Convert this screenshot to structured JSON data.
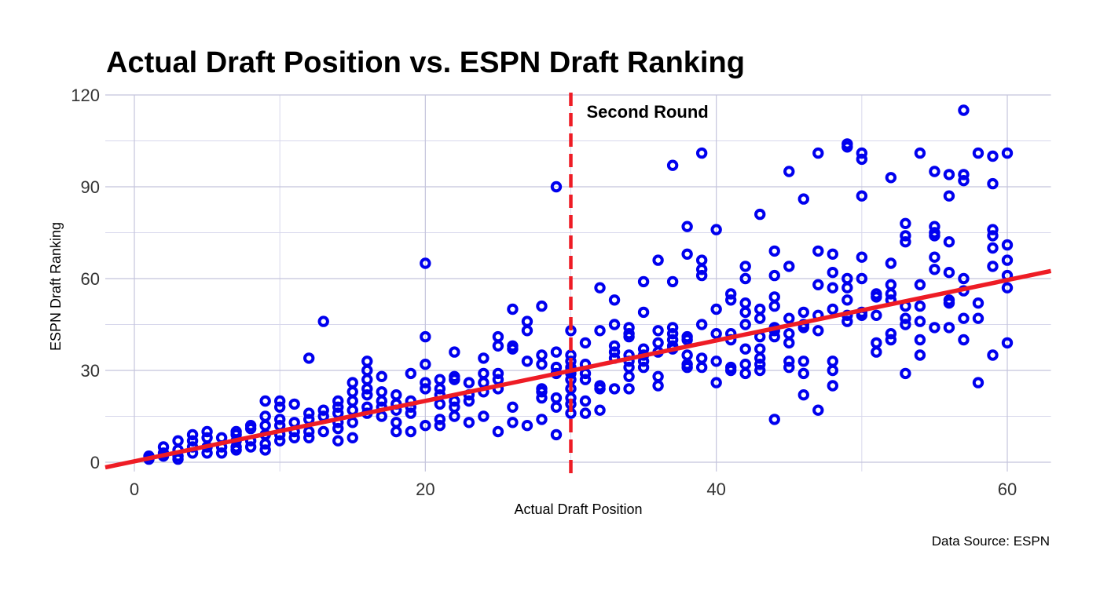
{
  "chart_data": {
    "type": "scatter",
    "title": "Actual Draft Position vs. ESPN Draft Ranking",
    "xlabel": "Actual Draft Position",
    "ylabel": "ESPN Draft Ranking",
    "caption": "Data Source: ESPN",
    "xlim": [
      -2,
      63
    ],
    "ylim": [
      -3,
      120
    ],
    "x_ticks": [
      0,
      20,
      40,
      60
    ],
    "y_ticks": [
      0,
      30,
      60,
      90,
      120
    ],
    "grid": true,
    "marker_color": "#0000ee",
    "trend_color": "#ee1c25",
    "trend_line": {
      "intercept": 0.3,
      "slope": 0.987
    },
    "vline": {
      "x": 30,
      "label": "Second Round",
      "color": "#ee1c25",
      "style": "dashed"
    },
    "points": [
      [
        1,
        1
      ],
      [
        1,
        2
      ],
      [
        2,
        2
      ],
      [
        2,
        3
      ],
      [
        2,
        5
      ],
      [
        3,
        1
      ],
      [
        3,
        2
      ],
      [
        3,
        4
      ],
      [
        3,
        7
      ],
      [
        4,
        3
      ],
      [
        4,
        5
      ],
      [
        4,
        7
      ],
      [
        4,
        9
      ],
      [
        5,
        3
      ],
      [
        5,
        5
      ],
      [
        5,
        8
      ],
      [
        5,
        10
      ],
      [
        6,
        3
      ],
      [
        6,
        5
      ],
      [
        6,
        8
      ],
      [
        7,
        4
      ],
      [
        7,
        5
      ],
      [
        7,
        7
      ],
      [
        7,
        9
      ],
      [
        7,
        10
      ],
      [
        8,
        5
      ],
      [
        8,
        7
      ],
      [
        8,
        11
      ],
      [
        8,
        12
      ],
      [
        9,
        4
      ],
      [
        9,
        6
      ],
      [
        9,
        9
      ],
      [
        9,
        12
      ],
      [
        9,
        15
      ],
      [
        9,
        20
      ],
      [
        10,
        7
      ],
      [
        10,
        9
      ],
      [
        10,
        12
      ],
      [
        10,
        14
      ],
      [
        10,
        18
      ],
      [
        10,
        20
      ],
      [
        11,
        8
      ],
      [
        11,
        10
      ],
      [
        11,
        13
      ],
      [
        11,
        19
      ],
      [
        12,
        8
      ],
      [
        12,
        10
      ],
      [
        12,
        14
      ],
      [
        12,
        16
      ],
      [
        12,
        34
      ],
      [
        13,
        10
      ],
      [
        13,
        15
      ],
      [
        13,
        17
      ],
      [
        13,
        46
      ],
      [
        14,
        7
      ],
      [
        14,
        11
      ],
      [
        14,
        13
      ],
      [
        14,
        16
      ],
      [
        14,
        18
      ],
      [
        14,
        20
      ],
      [
        15,
        8
      ],
      [
        15,
        13
      ],
      [
        15,
        17
      ],
      [
        15,
        20
      ],
      [
        15,
        23
      ],
      [
        15,
        26
      ],
      [
        16,
        16
      ],
      [
        16,
        18
      ],
      [
        16,
        22
      ],
      [
        16,
        24
      ],
      [
        16,
        27
      ],
      [
        16,
        30
      ],
      [
        16,
        33
      ],
      [
        17,
        15
      ],
      [
        17,
        18
      ],
      [
        17,
        20
      ],
      [
        17,
        23
      ],
      [
        17,
        28
      ],
      [
        18,
        10
      ],
      [
        18,
        13
      ],
      [
        18,
        17
      ],
      [
        18,
        19
      ],
      [
        18,
        22
      ],
      [
        19,
        10
      ],
      [
        19,
        16
      ],
      [
        19,
        18
      ],
      [
        19,
        20
      ],
      [
        19,
        29
      ],
      [
        20,
        12
      ],
      [
        20,
        24
      ],
      [
        20,
        26
      ],
      [
        20,
        32
      ],
      [
        20,
        41
      ],
      [
        20,
        65
      ],
      [
        21,
        12
      ],
      [
        21,
        14
      ],
      [
        21,
        19
      ],
      [
        21,
        22
      ],
      [
        21,
        24
      ],
      [
        21,
        27
      ],
      [
        22,
        15
      ],
      [
        22,
        18
      ],
      [
        22,
        20
      ],
      [
        22,
        27
      ],
      [
        22,
        28
      ],
      [
        22,
        36
      ],
      [
        23,
        13
      ],
      [
        23,
        20
      ],
      [
        23,
        22
      ],
      [
        23,
        26
      ],
      [
        24,
        15
      ],
      [
        24,
        23
      ],
      [
        24,
        26
      ],
      [
        24,
        29
      ],
      [
        24,
        34
      ],
      [
        25,
        10
      ],
      [
        25,
        24
      ],
      [
        25,
        27
      ],
      [
        25,
        29
      ],
      [
        25,
        38
      ],
      [
        25,
        41
      ],
      [
        26,
        13
      ],
      [
        26,
        18
      ],
      [
        26,
        37
      ],
      [
        26,
        38
      ],
      [
        26,
        50
      ],
      [
        27,
        12
      ],
      [
        27,
        33
      ],
      [
        27,
        43
      ],
      [
        27,
        46
      ],
      [
        28,
        14
      ],
      [
        28,
        21
      ],
      [
        28,
        23
      ],
      [
        28,
        24
      ],
      [
        28,
        32
      ],
      [
        28,
        35
      ],
      [
        28,
        51
      ],
      [
        29,
        9
      ],
      [
        29,
        18
      ],
      [
        29,
        21
      ],
      [
        29,
        29
      ],
      [
        29,
        31
      ],
      [
        29,
        36
      ],
      [
        29,
        90
      ],
      [
        30,
        16
      ],
      [
        30,
        19
      ],
      [
        30,
        21
      ],
      [
        30,
        24
      ],
      [
        30,
        27
      ],
      [
        30,
        29
      ],
      [
        30,
        30
      ],
      [
        30,
        31
      ],
      [
        30,
        33
      ],
      [
        30,
        35
      ],
      [
        30,
        43
      ],
      [
        31,
        16
      ],
      [
        31,
        20
      ],
      [
        31,
        27
      ],
      [
        31,
        29
      ],
      [
        31,
        32
      ],
      [
        31,
        39
      ],
      [
        32,
        17
      ],
      [
        32,
        24
      ],
      [
        32,
        25
      ],
      [
        32,
        43
      ],
      [
        32,
        57
      ],
      [
        33,
        24
      ],
      [
        33,
        34
      ],
      [
        33,
        36
      ],
      [
        33,
        38
      ],
      [
        33,
        45
      ],
      [
        33,
        53
      ],
      [
        34,
        24
      ],
      [
        34,
        28
      ],
      [
        34,
        31
      ],
      [
        34,
        33
      ],
      [
        34,
        35
      ],
      [
        34,
        41
      ],
      [
        34,
        42
      ],
      [
        34,
        44
      ],
      [
        35,
        31
      ],
      [
        35,
        33
      ],
      [
        35,
        35
      ],
      [
        35,
        37
      ],
      [
        35,
        49
      ],
      [
        35,
        59
      ],
      [
        36,
        25
      ],
      [
        36,
        28
      ],
      [
        36,
        36
      ],
      [
        36,
        39
      ],
      [
        36,
        43
      ],
      [
        36,
        66
      ],
      [
        37,
        37
      ],
      [
        37,
        38
      ],
      [
        37,
        40
      ],
      [
        37,
        42
      ],
      [
        37,
        44
      ],
      [
        37,
        59
      ],
      [
        37,
        97
      ],
      [
        38,
        31
      ],
      [
        38,
        32
      ],
      [
        38,
        35
      ],
      [
        38,
        40
      ],
      [
        38,
        41
      ],
      [
        38,
        68
      ],
      [
        38,
        77
      ],
      [
        39,
        31
      ],
      [
        39,
        34
      ],
      [
        39,
        45
      ],
      [
        39,
        61
      ],
      [
        39,
        63
      ],
      [
        39,
        66
      ],
      [
        39,
        101
      ],
      [
        40,
        26
      ],
      [
        40,
        33
      ],
      [
        40,
        42
      ],
      [
        40,
        50
      ],
      [
        40,
        76
      ],
      [
        41,
        30
      ],
      [
        41,
        31
      ],
      [
        41,
        40
      ],
      [
        41,
        42
      ],
      [
        41,
        53
      ],
      [
        41,
        55
      ],
      [
        42,
        29
      ],
      [
        42,
        32
      ],
      [
        42,
        37
      ],
      [
        42,
        45
      ],
      [
        42,
        49
      ],
      [
        42,
        52
      ],
      [
        42,
        60
      ],
      [
        42,
        64
      ],
      [
        43,
        30
      ],
      [
        43,
        32
      ],
      [
        43,
        34
      ],
      [
        43,
        37
      ],
      [
        43,
        41
      ],
      [
        43,
        47
      ],
      [
        43,
        50
      ],
      [
        43,
        81
      ],
      [
        44,
        14
      ],
      [
        44,
        41
      ],
      [
        44,
        43
      ],
      [
        44,
        44
      ],
      [
        44,
        51
      ],
      [
        44,
        54
      ],
      [
        44,
        61
      ],
      [
        44,
        69
      ],
      [
        45,
        31
      ],
      [
        45,
        33
      ],
      [
        45,
        39
      ],
      [
        45,
        42
      ],
      [
        45,
        47
      ],
      [
        45,
        64
      ],
      [
        45,
        95
      ],
      [
        46,
        22
      ],
      [
        46,
        29
      ],
      [
        46,
        33
      ],
      [
        46,
        44
      ],
      [
        46,
        45
      ],
      [
        46,
        49
      ],
      [
        46,
        86
      ],
      [
        47,
        17
      ],
      [
        47,
        43
      ],
      [
        47,
        48
      ],
      [
        47,
        58
      ],
      [
        47,
        69
      ],
      [
        47,
        101
      ],
      [
        48,
        25
      ],
      [
        48,
        30
      ],
      [
        48,
        33
      ],
      [
        48,
        50
      ],
      [
        48,
        57
      ],
      [
        48,
        62
      ],
      [
        48,
        68
      ],
      [
        49,
        46
      ],
      [
        49,
        48
      ],
      [
        49,
        53
      ],
      [
        49,
        57
      ],
      [
        49,
        60
      ],
      [
        49,
        103
      ],
      [
        49,
        104
      ],
      [
        50,
        48
      ],
      [
        50,
        49
      ],
      [
        50,
        60
      ],
      [
        50,
        67
      ],
      [
        50,
        87
      ],
      [
        50,
        99
      ],
      [
        50,
        101
      ],
      [
        51,
        36
      ],
      [
        51,
        39
      ],
      [
        51,
        48
      ],
      [
        51,
        54
      ],
      [
        51,
        55
      ],
      [
        52,
        40
      ],
      [
        52,
        42
      ],
      [
        52,
        53
      ],
      [
        52,
        55
      ],
      [
        52,
        58
      ],
      [
        52,
        65
      ],
      [
        52,
        93
      ],
      [
        53,
        29
      ],
      [
        53,
        45
      ],
      [
        53,
        47
      ],
      [
        53,
        51
      ],
      [
        53,
        72
      ],
      [
        53,
        74
      ],
      [
        53,
        78
      ],
      [
        54,
        35
      ],
      [
        54,
        40
      ],
      [
        54,
        46
      ],
      [
        54,
        51
      ],
      [
        54,
        58
      ],
      [
        54,
        101
      ],
      [
        55,
        44
      ],
      [
        55,
        63
      ],
      [
        55,
        67
      ],
      [
        55,
        74
      ],
      [
        55,
        75
      ],
      [
        55,
        77
      ],
      [
        55,
        95
      ],
      [
        56,
        44
      ],
      [
        56,
        52
      ],
      [
        56,
        53
      ],
      [
        56,
        62
      ],
      [
        56,
        72
      ],
      [
        56,
        87
      ],
      [
        56,
        94
      ],
      [
        57,
        40
      ],
      [
        57,
        47
      ],
      [
        57,
        56
      ],
      [
        57,
        60
      ],
      [
        57,
        92
      ],
      [
        57,
        94
      ],
      [
        57,
        115
      ],
      [
        58,
        26
      ],
      [
        58,
        47
      ],
      [
        58,
        52
      ],
      [
        58,
        101
      ],
      [
        59,
        35
      ],
      [
        59,
        64
      ],
      [
        59,
        70
      ],
      [
        59,
        74
      ],
      [
        59,
        76
      ],
      [
        59,
        91
      ],
      [
        59,
        100
      ],
      [
        60,
        39
      ],
      [
        60,
        57
      ],
      [
        60,
        61
      ],
      [
        60,
        66
      ],
      [
        60,
        71
      ],
      [
        60,
        101
      ]
    ]
  }
}
